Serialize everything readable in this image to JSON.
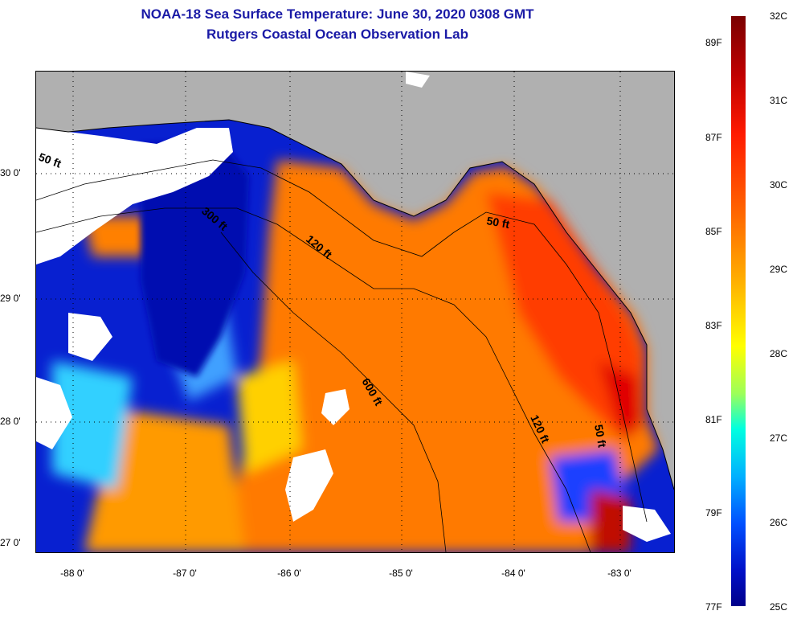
{
  "header": {
    "title_line1": "NOAA-18 Sea Surface Temperature:  June 30, 2020 0308 GMT",
    "title_line2": "Rutgers Coastal Ocean Observation Lab"
  },
  "map": {
    "lat_labels": [
      "30 0'",
      "29 0'",
      "28 0'",
      "27 0'"
    ],
    "lon_labels": [
      "-88 0'",
      "-87 0'",
      "-86 0'",
      "-85 0'",
      "-84 0'",
      "-83 0'"
    ],
    "contour_labels": [
      "50 ft",
      "300 ft",
      "120 ft",
      "50 ft",
      "600 ft",
      "120 ft",
      "50 ft"
    ]
  },
  "colorbar": {
    "celsius_labels": [
      "32C",
      "31C",
      "30C",
      "29C",
      "28C",
      "27C",
      "26C",
      "25C"
    ],
    "fahrenheit_labels": [
      "89F",
      "87F",
      "85F",
      "83F",
      "81F",
      "79F",
      "77F"
    ]
  },
  "colors": {
    "title": "#1a1aa6",
    "land": "#b0b0b0",
    "cloud": "#ffffff"
  }
}
